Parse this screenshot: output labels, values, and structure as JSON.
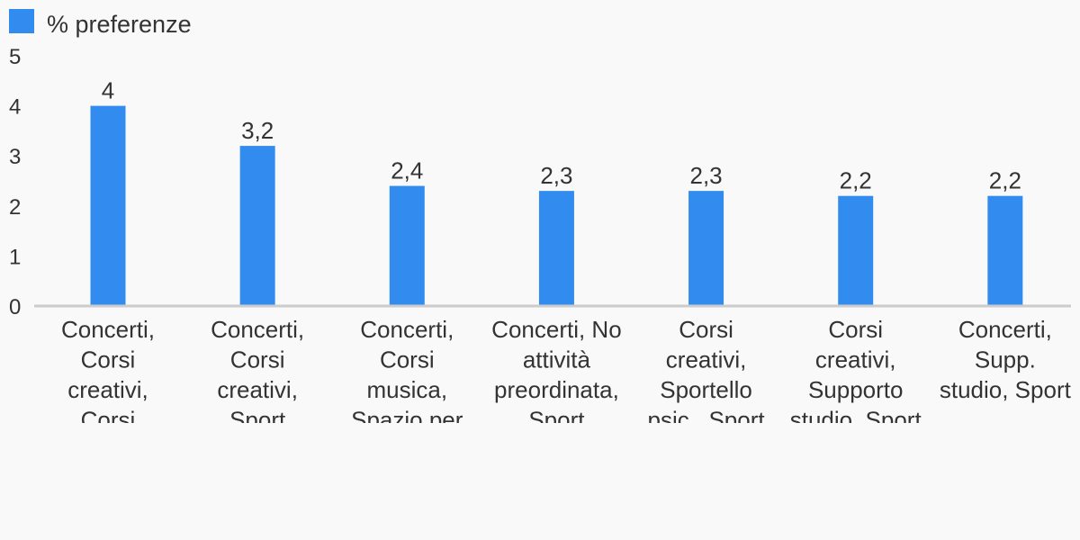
{
  "chart_data": {
    "type": "bar",
    "legend": {
      "label": "% preferenze",
      "position": "top-left"
    },
    "categories": [
      [
        "Concerti,",
        "Corsi",
        "creativi,",
        "Corsi"
      ],
      [
        "Concerti,",
        "Corsi",
        "creativi,",
        "Sport"
      ],
      [
        "Concerti,",
        "Corsi",
        "musica,",
        "Spazio per"
      ],
      [
        "Concerti, No",
        "attività",
        "preordinata,",
        "Sport"
      ],
      [
        "Corsi",
        "creativi,",
        "Sportello",
        "psic., Sport"
      ],
      [
        "Corsi",
        "creativi,",
        "Supporto",
        "studio, Sport"
      ],
      [
        "Concerti,",
        "Supp.",
        "studio, Sport"
      ]
    ],
    "series": [
      {
        "name": "% preferenze",
        "values": [
          4,
          3.2,
          2.4,
          2.3,
          2.3,
          2.2,
          2.2
        ],
        "labels": [
          "4",
          "3,2",
          "2,4",
          "2,3",
          "2,3",
          "2,2",
          "2,2"
        ]
      }
    ],
    "y_ticks": [
      "0",
      "1",
      "2",
      "3",
      "4",
      "5"
    ],
    "ylim": [
      0,
      5
    ],
    "grid": false,
    "colors": {
      "bar": "#328cf0",
      "axis": "#cccccc",
      "text": "#333333",
      "background": "#f9f9f9"
    }
  }
}
